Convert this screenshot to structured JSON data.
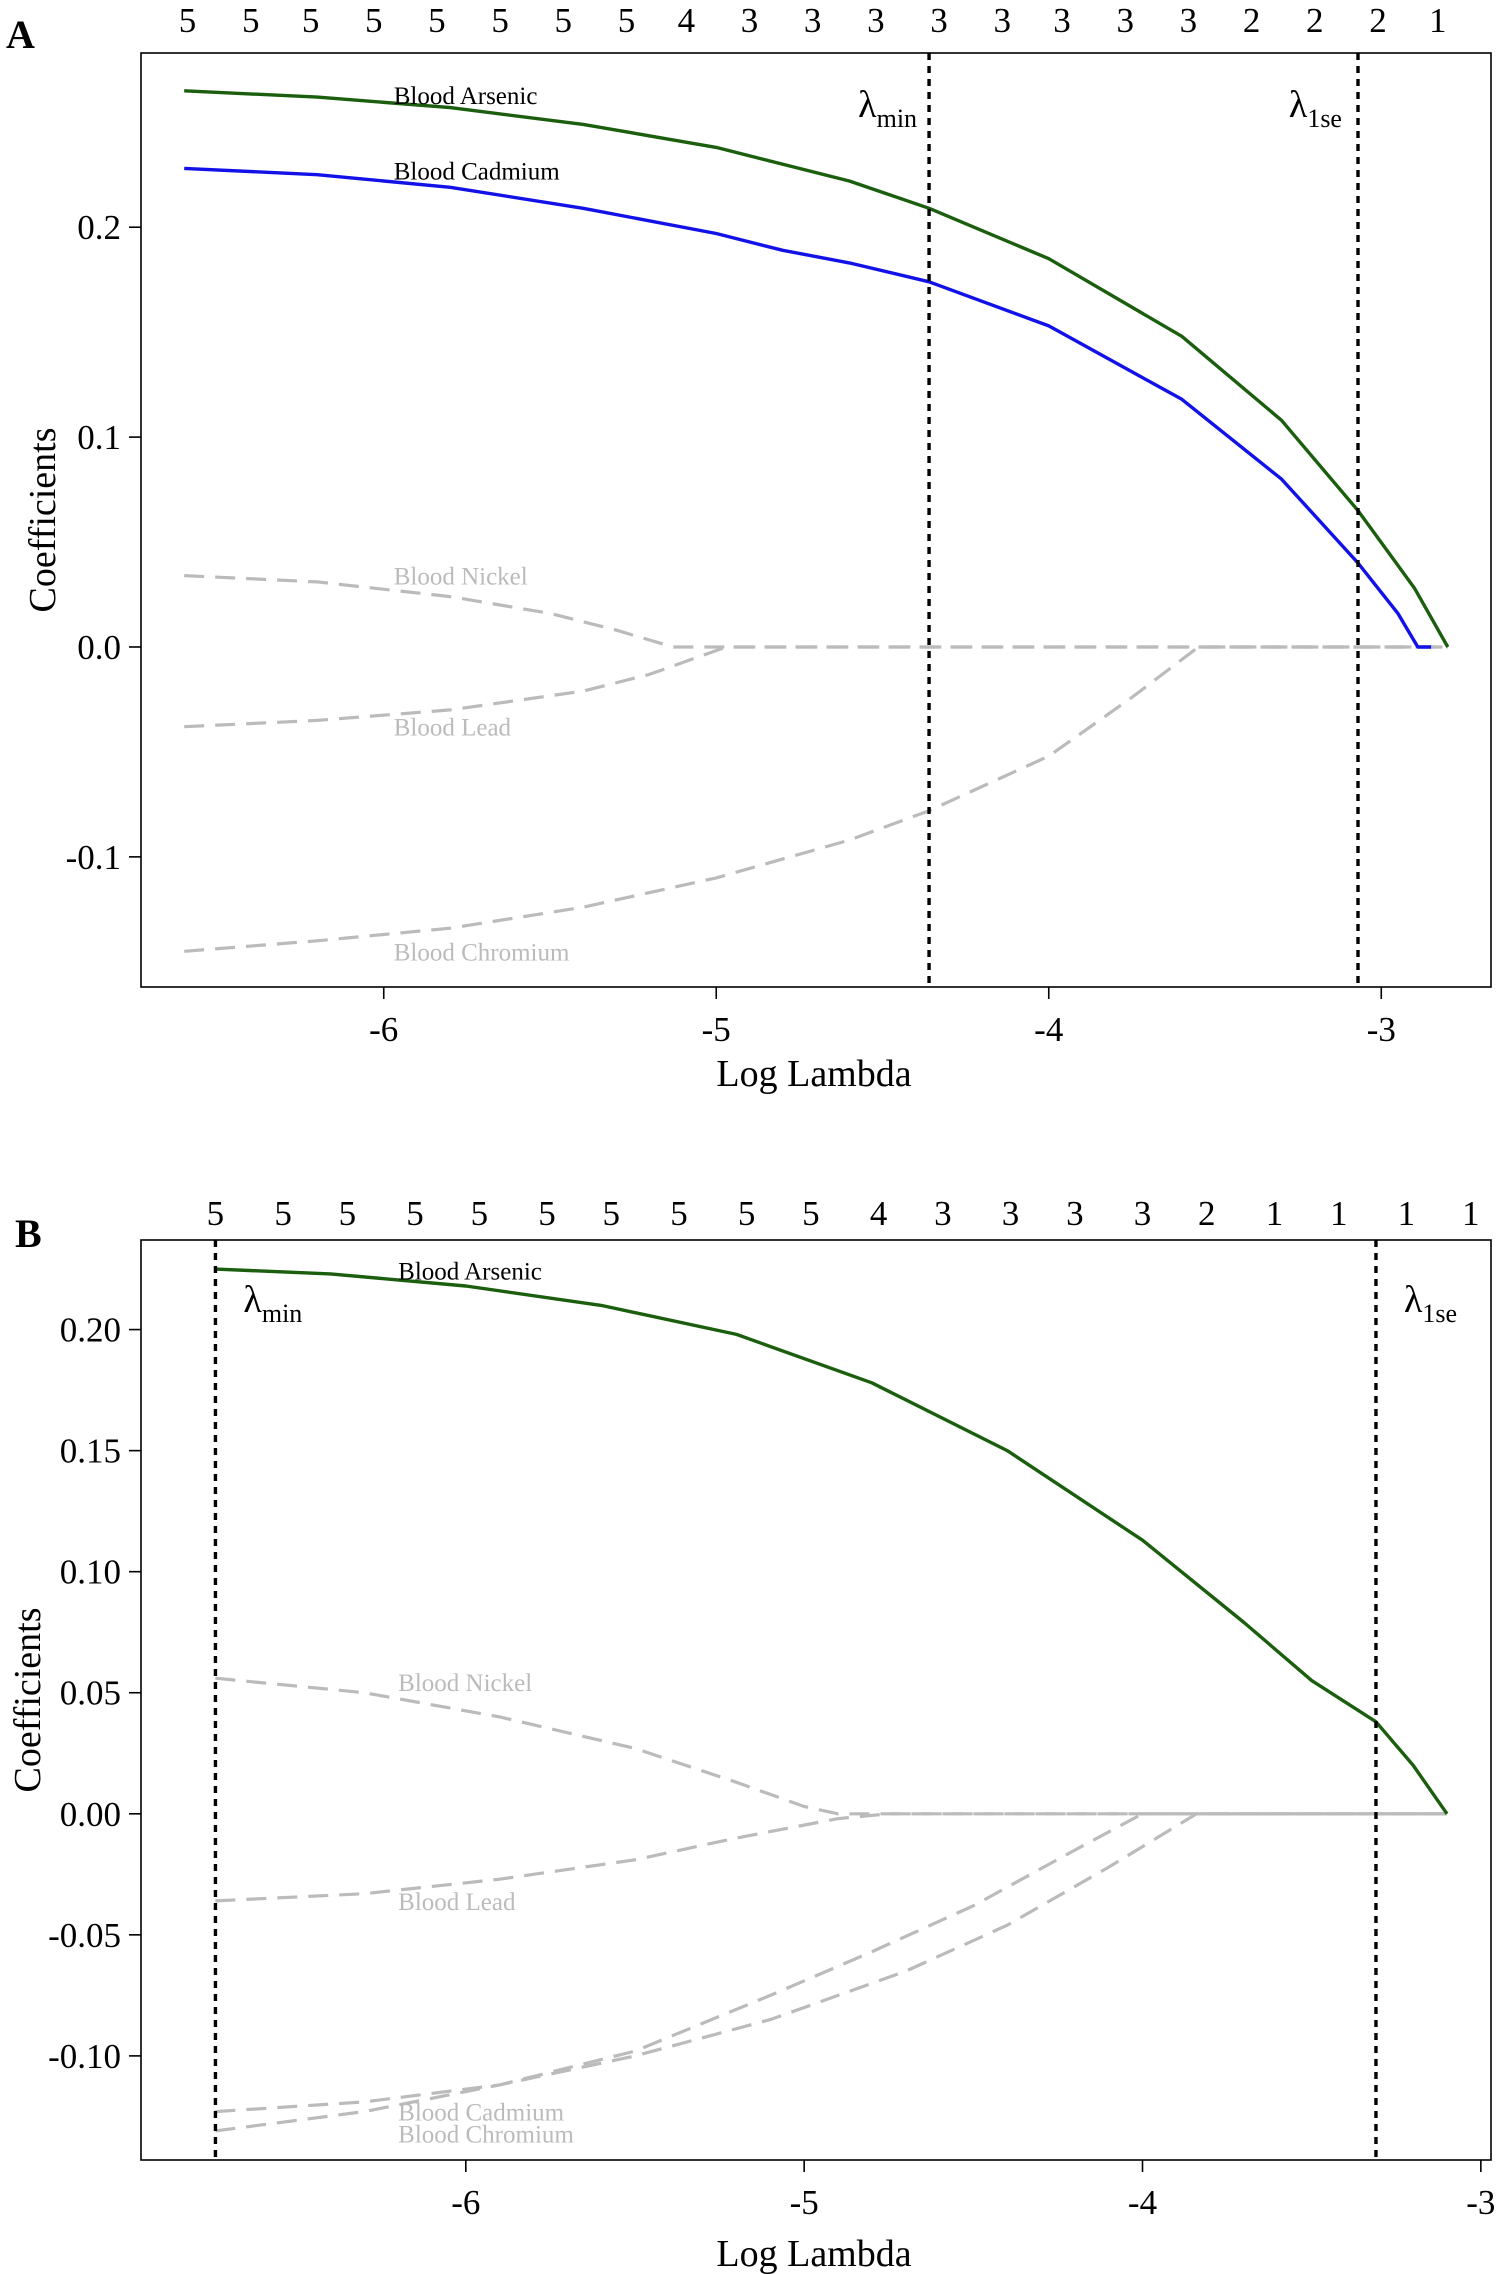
{
  "chart_data": [
    {
      "panel": "A",
      "type": "line",
      "xlabel": "Log Lambda",
      "ylabel": "Coefficients",
      "xlim": [
        -6.73,
        -2.67
      ],
      "ylim": [
        -0.162,
        0.283
      ],
      "xticks": [
        -6,
        -5,
        -4,
        -3
      ],
      "xtick_labels": [
        "-6",
        "-5",
        "-4",
        "-3"
      ],
      "yticks": [
        -0.1,
        0.0,
        0.1,
        0.2
      ],
      "ytick_labels": [
        "-0.1",
        "0.0",
        "0.1",
        "0.2"
      ],
      "top_axis": {
        "x": [
          -6.59,
          -6.4,
          -6.22,
          -6.03,
          -5.84,
          -5.65,
          -5.46,
          -5.27,
          -5.09,
          -4.9,
          -4.71,
          -4.52,
          -4.33,
          -4.14,
          -3.96,
          -3.77,
          -3.58,
          -3.39,
          -3.2,
          -3.01,
          -2.83
        ],
        "labels": [
          "5",
          "5",
          "5",
          "5",
          "5",
          "5",
          "5",
          "5",
          "4",
          "3",
          "3",
          "3",
          "3",
          "3",
          "3",
          "3",
          "3",
          "2",
          "2",
          "2",
          "1"
        ]
      },
      "vlines": [
        {
          "name": "lambda-min",
          "x": -4.36,
          "symbol": "λ",
          "sub": "min"
        },
        {
          "name": "lambda-1se",
          "x": -3.07,
          "symbol": "λ",
          "sub": "1se"
        }
      ],
      "series": [
        {
          "name": "Blood Arsenic",
          "color": "#1a5e0e",
          "dash": false,
          "label_color": "#000000",
          "label_x": -5.97,
          "label_y": 0.263,
          "x": [
            -6.6,
            -6.2,
            -5.8,
            -5.4,
            -5.0,
            -4.6,
            -4.36,
            -4.0,
            -3.6,
            -3.3,
            -3.07,
            -2.9,
            -2.8
          ],
          "y": [
            0.265,
            0.262,
            0.257,
            0.249,
            0.238,
            0.222,
            0.209,
            0.185,
            0.148,
            0.108,
            0.065,
            0.028,
            0.0
          ]
        },
        {
          "name": "Blood Cadmium",
          "color": "#1212e8",
          "dash": false,
          "label_color": "#000000",
          "label_x": -5.97,
          "label_y": 0.227,
          "x": [
            -6.6,
            -6.2,
            -5.8,
            -5.4,
            -5.0,
            -4.8,
            -4.6,
            -4.36,
            -4.0,
            -3.6,
            -3.3,
            -3.07,
            -2.95,
            -2.89,
            -2.85
          ],
          "y": [
            0.228,
            0.225,
            0.219,
            0.209,
            0.197,
            0.189,
            0.183,
            0.174,
            0.153,
            0.118,
            0.08,
            0.04,
            0.016,
            0.0,
            0.0
          ]
        },
        {
          "name": "Blood Nickel",
          "color": "#bbbbbb",
          "dash": true,
          "label_color": "#bbbbbb",
          "label_x": -5.97,
          "label_y": 0.034,
          "x": [
            -6.6,
            -6.2,
            -5.8,
            -5.5,
            -5.3,
            -5.13,
            -4.6,
            -4.0,
            -3.5,
            -3.07,
            -2.8
          ],
          "y": [
            0.034,
            0.031,
            0.024,
            0.016,
            0.008,
            0.0,
            0.0,
            0.0,
            0.0,
            0.0,
            0.0
          ]
        },
        {
          "name": "Blood Lead",
          "color": "#bbbbbb",
          "dash": true,
          "label_color": "#bbbbbb",
          "label_x": -5.97,
          "label_y": -0.038,
          "x": [
            -6.6,
            -6.2,
            -5.8,
            -5.4,
            -5.2,
            -4.97,
            -4.5,
            -4.0,
            -3.5,
            -3.07,
            -2.8
          ],
          "y": [
            -0.038,
            -0.035,
            -0.03,
            -0.021,
            -0.013,
            0.0,
            0.0,
            0.0,
            0.0,
            0.0,
            0.0
          ]
        },
        {
          "name": "Blood Chromium",
          "color": "#bbbbbb",
          "dash": true,
          "label_color": "#bbbbbb",
          "label_x": -5.97,
          "label_y": -0.145,
          "x": [
            -6.6,
            -6.2,
            -5.8,
            -5.4,
            -5.0,
            -4.6,
            -4.36,
            -4.0,
            -3.75,
            -3.55,
            -3.3,
            -3.07,
            -2.8
          ],
          "y": [
            -0.145,
            -0.14,
            -0.134,
            -0.124,
            -0.11,
            -0.092,
            -0.078,
            -0.052,
            -0.024,
            0.0,
            0.0,
            0.0,
            0.0
          ]
        }
      ]
    },
    {
      "panel": "B",
      "type": "line",
      "xlabel": "Log Lambda",
      "ylabel": "Coefficients",
      "xlim": [
        -6.96,
        -2.97
      ],
      "ylim": [
        -0.143,
        0.237
      ],
      "xticks": [
        -6,
        -5,
        -4,
        -3
      ],
      "xtick_labels": [
        "-6",
        "-5",
        "-4",
        "-3"
      ],
      "yticks": [
        -0.1,
        -0.05,
        0.0,
        0.05,
        0.1,
        0.15,
        0.2
      ],
      "ytick_labels": [
        "-0.10",
        "-0.05",
        "0.00",
        "0.05",
        "0.10",
        "0.15",
        "0.20"
      ],
      "top_axis": {
        "x": [
          -6.74,
          -6.54,
          -6.35,
          -6.15,
          -5.96,
          -5.76,
          -5.57,
          -5.37,
          -5.17,
          -4.98,
          -4.78,
          -4.59,
          -4.39,
          -4.2,
          -4.0,
          -3.81,
          -3.61,
          -3.42,
          -3.22,
          -3.03
        ],
        "labels": [
          "5",
          "5",
          "5",
          "5",
          "5",
          "5",
          "5",
          "5",
          "5",
          "5",
          "4",
          "3",
          "3",
          "3",
          "3",
          "2",
          "1",
          "1",
          "1",
          "1"
        ]
      },
      "vlines": [
        {
          "name": "lambda-min",
          "x": -6.74,
          "symbol": "λ",
          "sub": "min"
        },
        {
          "name": "lambda-1se",
          "x": -3.31,
          "symbol": "λ",
          "sub": "1se"
        }
      ],
      "series": [
        {
          "name": "Blood Arsenic",
          "color": "#1a5e0e",
          "dash": false,
          "label_color": "#000000",
          "label_x": -6.2,
          "label_y": 0.2245,
          "x": [
            -6.74,
            -6.4,
            -6.0,
            -5.6,
            -5.2,
            -4.8,
            -4.4,
            -4.0,
            -3.7,
            -3.5,
            -3.31,
            -3.2,
            -3.1
          ],
          "y": [
            0.225,
            0.223,
            0.218,
            0.21,
            0.198,
            0.178,
            0.15,
            0.113,
            0.079,
            0.055,
            0.038,
            0.02,
            0.0
          ]
        },
        {
          "name": "Blood Nickel",
          "color": "#bbbbbb",
          "dash": true,
          "label_color": "#bbbbbb",
          "label_x": -6.2,
          "label_y": 0.0545,
          "x": [
            -6.74,
            -6.3,
            -5.9,
            -5.5,
            -5.2,
            -5.0,
            -4.9,
            -4.4,
            -4.0,
            -3.6,
            -3.31,
            -3.1
          ],
          "y": [
            0.056,
            0.05,
            0.04,
            0.027,
            0.013,
            0.003,
            0.0,
            0.0,
            0.0,
            0.0,
            0.0,
            0.0
          ]
        },
        {
          "name": "Blood Lead",
          "color": "#bbbbbb",
          "dash": true,
          "label_color": "#bbbbbb",
          "label_x": -6.2,
          "label_y": -0.036,
          "x": [
            -6.74,
            -6.3,
            -5.9,
            -5.5,
            -5.2,
            -4.9,
            -4.75,
            -4.4,
            -4.0,
            -3.6,
            -3.31,
            -3.1
          ],
          "y": [
            -0.036,
            -0.033,
            -0.027,
            -0.019,
            -0.01,
            -0.002,
            0.0,
            0.0,
            0.0,
            0.0,
            0.0,
            0.0
          ]
        },
        {
          "name": "Blood Cadmium",
          "color": "#bbbbbb",
          "dash": true,
          "label_color": "#bbbbbb",
          "label_x": -6.2,
          "label_y": -0.123,
          "x": [
            -6.74,
            -6.3,
            -5.9,
            -5.5,
            -5.1,
            -4.8,
            -4.5,
            -4.2,
            -4.0,
            -3.6,
            -3.31,
            -3.1
          ],
          "y": [
            -0.123,
            -0.119,
            -0.112,
            -0.098,
            -0.075,
            -0.057,
            -0.038,
            -0.015,
            0.0,
            0.0,
            0.0,
            0.0
          ]
        },
        {
          "name": "Blood Chromium",
          "color": "#bbbbbb",
          "dash": true,
          "label_color": "#bbbbbb",
          "label_x": -6.2,
          "label_y": -0.132,
          "x": [
            -6.74,
            -6.3,
            -5.9,
            -5.5,
            -5.1,
            -4.7,
            -4.4,
            -4.1,
            -3.84,
            -3.6,
            -3.31,
            -3.1
          ],
          "y": [
            -0.131,
            -0.123,
            -0.112,
            -0.1,
            -0.085,
            -0.065,
            -0.046,
            -0.022,
            0.0,
            0.0,
            0.0,
            0.0
          ]
        }
      ]
    }
  ]
}
